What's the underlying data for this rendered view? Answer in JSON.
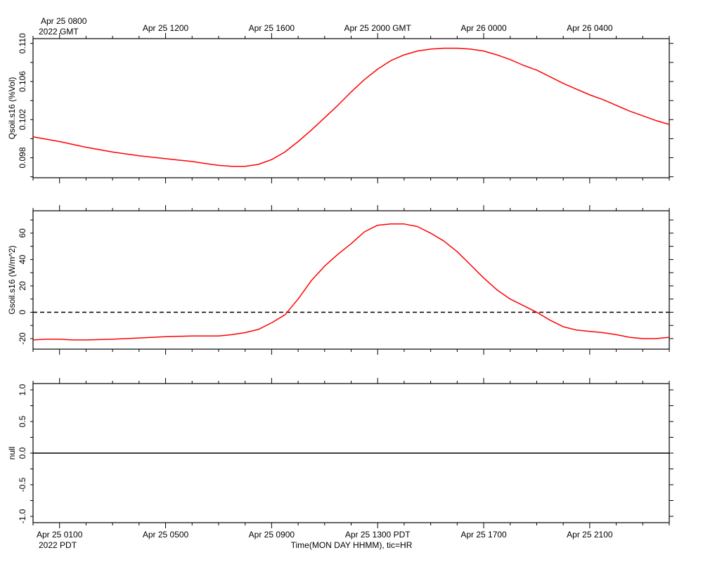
{
  "top_axis": {
    "first_tick": "Apr 25 0800",
    "year_label": "2022 GMT",
    "ticks": [
      "Apr 25 1200",
      "Apr 25 1600",
      "Apr 25 2000 GMT",
      "Apr 26 0000",
      "Apr 26 0400"
    ]
  },
  "bottom_axis": {
    "ticks": [
      "Apr 25 0100",
      "Apr 25 0500",
      "Apr 25 0900",
      "Apr 25 1300 PDT",
      "Apr 25 1700",
      "Apr 25 2100"
    ],
    "year_label": "2022 PDT",
    "xlabel": "Time(MON DAY HHMM), tic=HR"
  },
  "colors": {
    "series": "#ff0000",
    "axis": "#000000",
    "background": "#ffffff"
  },
  "chart_data": [
    {
      "type": "line",
      "ylabel": "Qsoil.s16 (%Vol)",
      "x_unit": "hours after Apr 25 0000 PDT",
      "xlim": [
        0,
        24
      ],
      "ylim": [
        0.0959,
        0.1105
      ],
      "yticks": [
        0.098,
        0.102,
        0.106,
        0.11
      ],
      "ytick_labels": [
        "0.098",
        "0.102",
        "0.106",
        "0.110"
      ],
      "series": [
        {
          "color": "#ff0000",
          "x": [
            0,
            1,
            2,
            3,
            4,
            5,
            6,
            6.5,
            7,
            7.5,
            8,
            8.5,
            9,
            9.5,
            10,
            10.5,
            11,
            11.5,
            12,
            12.5,
            13,
            13.5,
            14,
            14.5,
            15,
            15.5,
            16,
            16.5,
            17,
            17.5,
            18,
            18.5,
            19,
            19.5,
            20,
            20.5,
            21,
            21.5,
            22,
            22.5,
            23,
            23.5,
            24
          ],
          "y": [
            0.1002,
            0.0997,
            0.0991,
            0.0986,
            0.0982,
            0.0979,
            0.0976,
            0.0974,
            0.0972,
            0.0971,
            0.0971,
            0.0973,
            0.0978,
            0.0986,
            0.0997,
            0.1009,
            0.1022,
            0.1035,
            0.1049,
            0.1062,
            0.1073,
            0.1082,
            0.1088,
            0.1092,
            0.1094,
            0.1095,
            0.1095,
            0.1094,
            0.1092,
            0.1088,
            0.1083,
            0.1077,
            0.1072,
            0.1065,
            0.1058,
            0.1052,
            0.1046,
            0.1041,
            0.1035,
            0.1029,
            0.1024,
            0.1019,
            0.1015
          ]
        }
      ]
    },
    {
      "type": "line",
      "ylabel": "Gsoil.s16 (W/m^2)",
      "x_unit": "hours after Apr 25 0000 PDT",
      "xlim": [
        0,
        24
      ],
      "ylim": [
        -28,
        77
      ],
      "yticks": [
        -20,
        0,
        20,
        40,
        60
      ],
      "ytick_labels": [
        "-20",
        "0",
        "20",
        "40",
        "60"
      ],
      "zero_line": "dashed",
      "series": [
        {
          "color": "#ff0000",
          "x": [
            0,
            0.5,
            1,
            1.5,
            2,
            3,
            4,
            5,
            6,
            7,
            7.5,
            8,
            8.5,
            9,
            9.5,
            10,
            10.5,
            11,
            11.5,
            12,
            12.5,
            13,
            13.5,
            14,
            14.5,
            15,
            15.5,
            16,
            16.5,
            17,
            17.5,
            18,
            18.5,
            19,
            19.5,
            20,
            20.5,
            21,
            21.5,
            22,
            22.5,
            23,
            23.5,
            24
          ],
          "y": [
            -21,
            -20.5,
            -20.5,
            -21,
            -21,
            -20.5,
            -19.5,
            -18.5,
            -18,
            -18,
            -17,
            -15.5,
            -13,
            -8,
            -2,
            10,
            24,
            35,
            44,
            52,
            61,
            66,
            67,
            67,
            65,
            60,
            54,
            46,
            36,
            26,
            17,
            10,
            5,
            0,
            -6,
            -11,
            -13.5,
            -14.5,
            -15.5,
            -17,
            -19,
            -20,
            -20,
            -19
          ]
        }
      ]
    },
    {
      "type": "line",
      "ylabel": "null",
      "xlim": [
        0,
        24
      ],
      "ylim": [
        -1.1,
        1.1
      ],
      "yticks": [
        -1.0,
        -0.5,
        0.0,
        0.5,
        1.0
      ],
      "ytick_labels": [
        "-1.0",
        "-0.5",
        "0.0",
        "0.5",
        "1.0"
      ],
      "series": [
        {
          "color": "#000000",
          "x": [
            0,
            24
          ],
          "y": [
            0,
            0
          ]
        }
      ]
    }
  ]
}
